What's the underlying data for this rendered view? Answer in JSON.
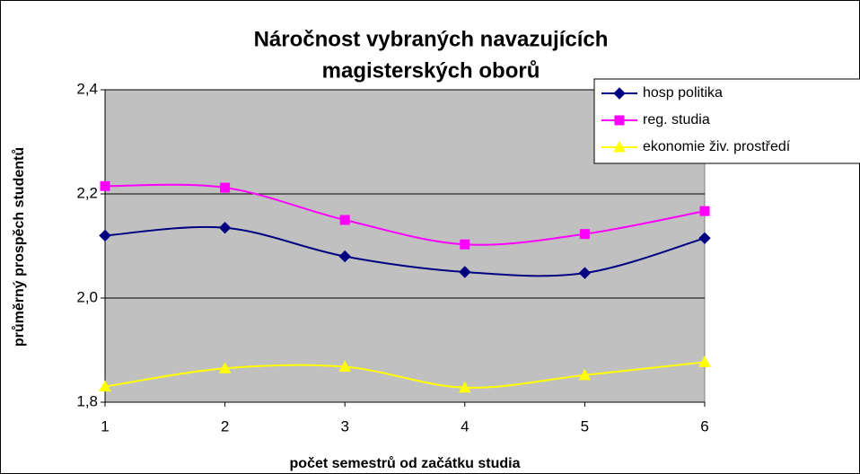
{
  "chart_data": {
    "type": "line",
    "title": [
      "Náročnost vybraných navazujících",
      "magisterských oborů"
    ],
    "x_label": "počet semestrů od začátku studia",
    "y_label": "průměrný prospěch studentů",
    "x": [
      1,
      2,
      3,
      4,
      5,
      6
    ],
    "xlim": [
      1,
      6
    ],
    "xticks": [
      1,
      2,
      3,
      4,
      5,
      6
    ],
    "ylim": [
      1.8,
      2.4
    ],
    "yticks": [
      {
        "value": 1.8,
        "label": "1,8"
      },
      {
        "value": 2.0,
        "label": "2,0"
      },
      {
        "value": 2.2,
        "label": "2,2"
      },
      {
        "value": 2.4,
        "label": "2,4"
      }
    ],
    "grid": true,
    "legend": "upper right",
    "smooth": true,
    "series": [
      {
        "name": "hosp politika",
        "color": "#000080",
        "marker": "diamond",
        "values": [
          2.12,
          2.135,
          2.08,
          2.05,
          2.048,
          2.115
        ]
      },
      {
        "name": "reg. studia",
        "color": "#ff00ff",
        "marker": "square",
        "values": [
          2.215,
          2.212,
          2.15,
          2.103,
          2.123,
          2.167
        ]
      },
      {
        "name": "ekonomie živ. prostředí",
        "color": "#ffff00",
        "marker": "triangle",
        "values": [
          1.83,
          1.865,
          1.868,
          1.828,
          1.852,
          1.877
        ]
      }
    ]
  }
}
